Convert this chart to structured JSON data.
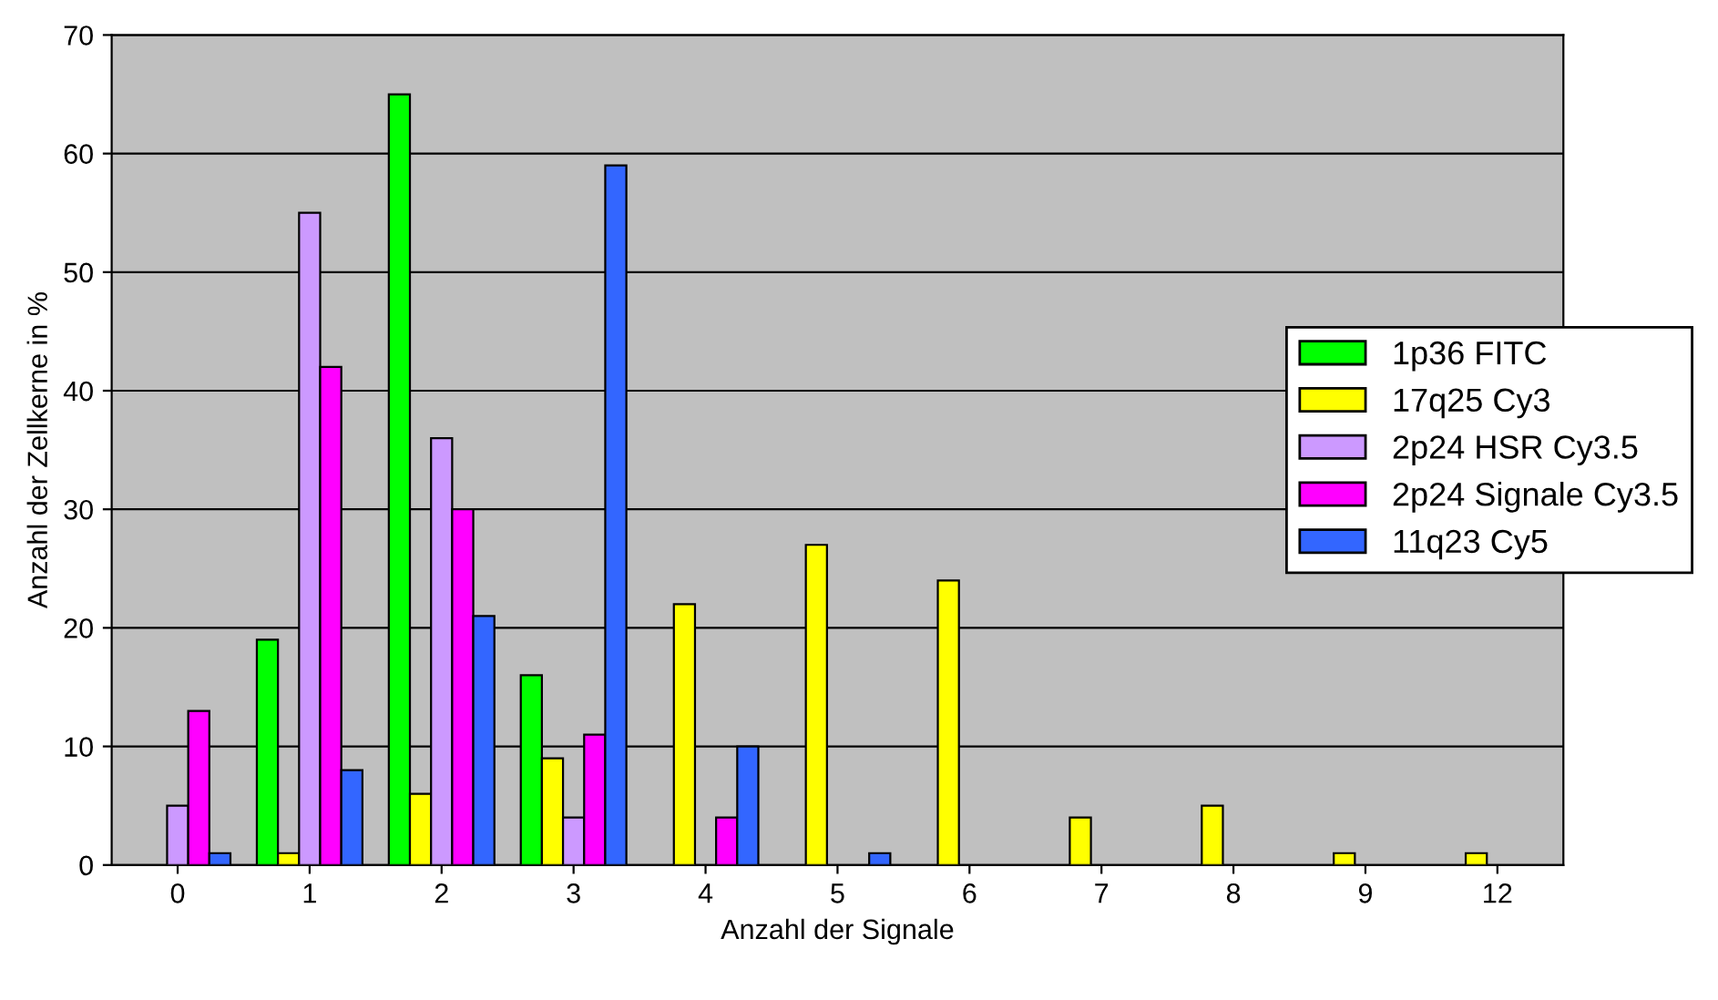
{
  "chart_data": {
    "type": "bar",
    "xlabel": "Anzahl der Signale",
    "ylabel": "Anzahl der Zellkerne in %",
    "categories": [
      "0",
      "1",
      "2",
      "3",
      "4",
      "5",
      "6",
      "7",
      "8",
      "9",
      "12"
    ],
    "series": [
      {
        "name": "1p36 FITC",
        "color": "#00ff00",
        "values": [
          null,
          19,
          65,
          16,
          null,
          null,
          null,
          null,
          null,
          null,
          null
        ]
      },
      {
        "name": "17q25 Cy3",
        "color": "#ffff00",
        "values": [
          null,
          1,
          6,
          9,
          22,
          27,
          24,
          4,
          5,
          1,
          1
        ]
      },
      {
        "name": "2p24 HSR Cy3.5",
        "color": "#cc99ff",
        "values": [
          5,
          55,
          36,
          4,
          null,
          null,
          null,
          null,
          null,
          null,
          null
        ]
      },
      {
        "name": "2p24 Signale Cy3.5",
        "color": "#ff00ff",
        "values": [
          13,
          42,
          30,
          11,
          4,
          null,
          null,
          null,
          null,
          null,
          null
        ]
      },
      {
        "name": "11q23 Cy5",
        "color": "#3366ff",
        "values": [
          1,
          8,
          21,
          59,
          10,
          1,
          null,
          null,
          null,
          null,
          null
        ]
      }
    ],
    "ylim": [
      0,
      70
    ],
    "yticks": [
      0,
      10,
      20,
      30,
      40,
      50,
      60,
      70
    ],
    "grid": "y",
    "legend": "right"
  }
}
